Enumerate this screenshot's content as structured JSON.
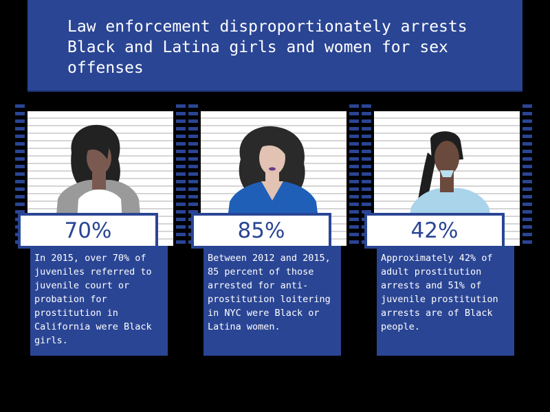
{
  "header": {
    "title": "Law enforcement disproportionately arrests Black and Latina girls and women for sex offenses"
  },
  "colors": {
    "brand_blue": "#2a4594",
    "background": "#000000",
    "board_white": "#ffffff"
  },
  "cards": [
    {
      "stat": "70%",
      "description": "In 2015, over 70% of juveniles referred to juvenile court or probation for prostitution in California were Black girls.",
      "figure_icon": "woman-portrait-gray-top-icon"
    },
    {
      "stat": "85%",
      "description": "Between 2012 and 2015, 85 percent of those arrested for anti-prostitution loitering in NYC were Black or Latina women.",
      "figure_icon": "woman-portrait-blue-top-icon"
    },
    {
      "stat": "42%",
      "description": "Approximately 42% of adult prostitution arrests and 51% of juvenile prostitution arrests are of Black people.",
      "figure_icon": "woman-portrait-lightblue-top-icon"
    }
  ]
}
